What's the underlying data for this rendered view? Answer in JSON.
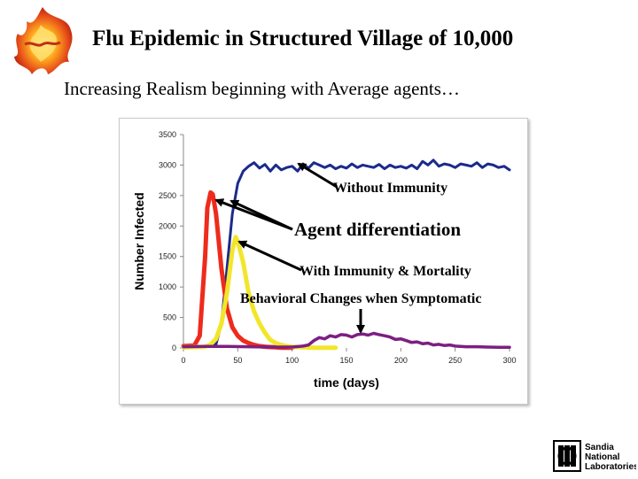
{
  "slide": {
    "title": "Flu Epidemic in Structured Village of 10,000",
    "subtitle": "Increasing Realism beginning with Average agents…"
  },
  "logos": {
    "left": {
      "icon": "phoenix-flame-logo-icon"
    },
    "right": {
      "icon": "sandia-logo-icon",
      "text_lines": [
        "Sandia",
        "National",
        "Laboratories"
      ]
    }
  },
  "chart_data": {
    "type": "line",
    "title": "",
    "xlabel": "time (days)",
    "ylabel": "Number Infected",
    "xlim": [
      0,
      300
    ],
    "ylim": [
      0,
      3500
    ],
    "x_ticks": [
      0,
      50,
      100,
      150,
      200,
      250,
      300
    ],
    "y_ticks": [
      0,
      500,
      1000,
      1500,
      2000,
      2500,
      3000,
      3500
    ],
    "grid": false,
    "legend": "none",
    "series": [
      {
        "color": "#1c2a8c",
        "x": [
          0,
          10,
          20,
          30,
          35,
          40,
          45,
          50,
          55,
          60,
          65,
          70,
          75,
          80,
          85,
          90,
          95,
          100,
          105,
          110,
          115,
          120,
          125,
          130,
          135,
          140,
          145,
          150,
          155,
          160,
          165,
          170,
          175,
          180,
          185,
          190,
          195,
          200,
          205,
          210,
          215,
          220,
          225,
          230,
          235,
          240,
          245,
          250,
          255,
          260,
          265,
          270,
          275,
          280,
          285,
          290,
          295,
          300
        ],
        "y": [
          10,
          10,
          15,
          60,
          400,
          1300,
          2200,
          2700,
          2900,
          2980,
          3040,
          2950,
          3010,
          2900,
          3000,
          2920,
          2960,
          2980,
          2900,
          3020,
          2950,
          3040,
          3000,
          2960,
          3000,
          2940,
          2980,
          2950,
          3020,
          2960,
          3000,
          2980,
          2960,
          3010,
          2940,
          3000,
          2960,
          2980,
          2950,
          3000,
          2940,
          3060,
          3000,
          3080,
          2980,
          3020,
          3000,
          2960,
          3020,
          3000,
          2980,
          3040,
          2960,
          3020,
          3000,
          2960,
          2980,
          2920
        ]
      },
      {
        "color": "#ee2b1c",
        "x": [
          0,
          10,
          15,
          20,
          22,
          25,
          27,
          30,
          35,
          40,
          45,
          50,
          55,
          60,
          65,
          70,
          75,
          80,
          85,
          90,
          95,
          100
        ],
        "y": [
          30,
          40,
          200,
          1500,
          2300,
          2550,
          2520,
          2200,
          1300,
          650,
          340,
          200,
          120,
          80,
          50,
          30,
          20,
          15,
          10,
          5,
          5,
          5
        ]
      },
      {
        "color": "#f2e62a",
        "x": [
          0,
          20,
          25,
          30,
          35,
          40,
          45,
          48,
          50,
          55,
          60,
          65,
          70,
          75,
          80,
          85,
          90,
          95,
          100,
          110,
          120,
          130,
          140
        ],
        "y": [
          10,
          20,
          60,
          150,
          400,
          900,
          1600,
          1820,
          1750,
          1400,
          900,
          600,
          400,
          250,
          130,
          80,
          50,
          30,
          20,
          10,
          5,
          5,
          5
        ]
      },
      {
        "color": "#7c1f82",
        "x": [
          0,
          20,
          40,
          60,
          80,
          100,
          110,
          115,
          120,
          125,
          130,
          135,
          140,
          145,
          150,
          155,
          160,
          165,
          170,
          175,
          180,
          185,
          190,
          195,
          200,
          205,
          210,
          215,
          220,
          225,
          230,
          235,
          240,
          245,
          250,
          260,
          270,
          280,
          290,
          300
        ],
        "y": [
          20,
          25,
          25,
          20,
          15,
          15,
          30,
          50,
          120,
          170,
          150,
          200,
          180,
          220,
          210,
          180,
          220,
          230,
          210,
          240,
          220,
          200,
          180,
          140,
          150,
          120,
          90,
          100,
          70,
          80,
          50,
          60,
          40,
          50,
          30,
          20,
          20,
          15,
          10,
          10
        ]
      }
    ],
    "annotations": [
      {
        "text": "Without  Immunity"
      },
      {
        "text": "Agent differentiation"
      },
      {
        "text": "With Immunity & Mortality"
      },
      {
        "text": "Behavioral Changes when Symptomatic"
      }
    ]
  }
}
